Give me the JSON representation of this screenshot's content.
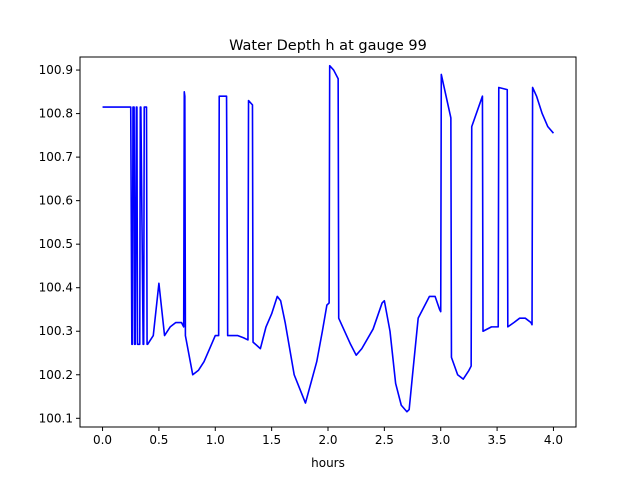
{
  "chart_data": {
    "type": "line",
    "title": "Water Depth h at gauge 99",
    "xlabel": "hours",
    "ylabel": "",
    "xlim": [
      -0.2,
      4.2
    ],
    "ylim": [
      100.08,
      100.93
    ],
    "x_ticks": [
      0.0,
      0.5,
      1.0,
      1.5,
      2.0,
      2.5,
      3.0,
      3.5,
      4.0
    ],
    "x_tick_labels": [
      "0.0",
      "0.5",
      "1.0",
      "1.5",
      "2.0",
      "2.5",
      "3.0",
      "3.5",
      "4.0"
    ],
    "y_ticks": [
      100.1,
      100.2,
      100.3,
      100.4,
      100.5,
      100.6,
      100.7,
      100.8,
      100.9
    ],
    "y_tick_labels": [
      "100.1",
      "100.2",
      "100.3",
      "100.4",
      "100.5",
      "100.6",
      "100.7",
      "100.8",
      "100.9"
    ],
    "grid": false,
    "series": [
      {
        "color": "#0000ff",
        "x": [
          0.0,
          0.24,
          0.245,
          0.25,
          0.26,
          0.265,
          0.27,
          0.28,
          0.285,
          0.29,
          0.3,
          0.305,
          0.31,
          0.33,
          0.335,
          0.34,
          0.36,
          0.365,
          0.37,
          0.39,
          0.395,
          0.4,
          0.45,
          0.5,
          0.55,
          0.6,
          0.65,
          0.7,
          0.72,
          0.725,
          0.73,
          0.735,
          0.8,
          0.85,
          0.9,
          0.95,
          1.0,
          1.03,
          1.035,
          1.08,
          1.1,
          1.11,
          1.15,
          1.2,
          1.25,
          1.29,
          1.295,
          1.33,
          1.335,
          1.4,
          1.45,
          1.5,
          1.55,
          1.58,
          1.62,
          1.7,
          1.8,
          1.9,
          1.95,
          1.99,
          2.01,
          2.015,
          2.05,
          2.09,
          2.095,
          2.2,
          2.25,
          2.3,
          2.4,
          2.48,
          2.5,
          2.55,
          2.6,
          2.65,
          2.7,
          2.72,
          2.75,
          2.8,
          2.83,
          2.9,
          2.95,
          2.99,
          3.0,
          3.005,
          3.09,
          3.095,
          3.15,
          3.2,
          3.25,
          3.27,
          3.275,
          3.37,
          3.375,
          3.45,
          3.5,
          3.51,
          3.515,
          3.59,
          3.595,
          3.65,
          3.7,
          3.75,
          3.8,
          3.81,
          3.815,
          3.85,
          3.9,
          3.95,
          4.0
        ],
        "values": [
          100.815,
          100.815,
          100.815,
          100.815,
          100.27,
          100.27,
          100.815,
          100.815,
          100.27,
          100.27,
          100.815,
          100.815,
          100.27,
          100.27,
          100.815,
          100.815,
          100.27,
          100.27,
          100.815,
          100.815,
          100.27,
          100.27,
          100.29,
          100.41,
          100.29,
          100.31,
          100.32,
          100.32,
          100.31,
          100.85,
          100.84,
          100.29,
          100.2,
          100.21,
          100.23,
          100.26,
          100.29,
          100.29,
          100.84,
          100.84,
          100.84,
          100.29,
          100.29,
          100.29,
          100.285,
          100.28,
          100.83,
          100.82,
          100.275,
          100.26,
          100.31,
          100.34,
          100.38,
          100.37,
          100.32,
          100.2,
          100.135,
          100.23,
          100.3,
          100.36,
          100.365,
          100.91,
          100.9,
          100.88,
          100.33,
          100.27,
          100.245,
          100.26,
          100.305,
          100.365,
          100.37,
          100.3,
          100.18,
          100.13,
          100.115,
          100.12,
          100.2,
          100.33,
          100.345,
          100.38,
          100.38,
          100.35,
          100.345,
          100.89,
          100.79,
          100.24,
          100.2,
          100.19,
          100.21,
          100.22,
          100.77,
          100.84,
          100.3,
          100.31,
          100.31,
          100.31,
          100.86,
          100.855,
          100.31,
          100.32,
          100.33,
          100.33,
          100.32,
          100.315,
          100.86,
          100.84,
          100.8,
          100.77,
          100.755
        ]
      }
    ]
  }
}
